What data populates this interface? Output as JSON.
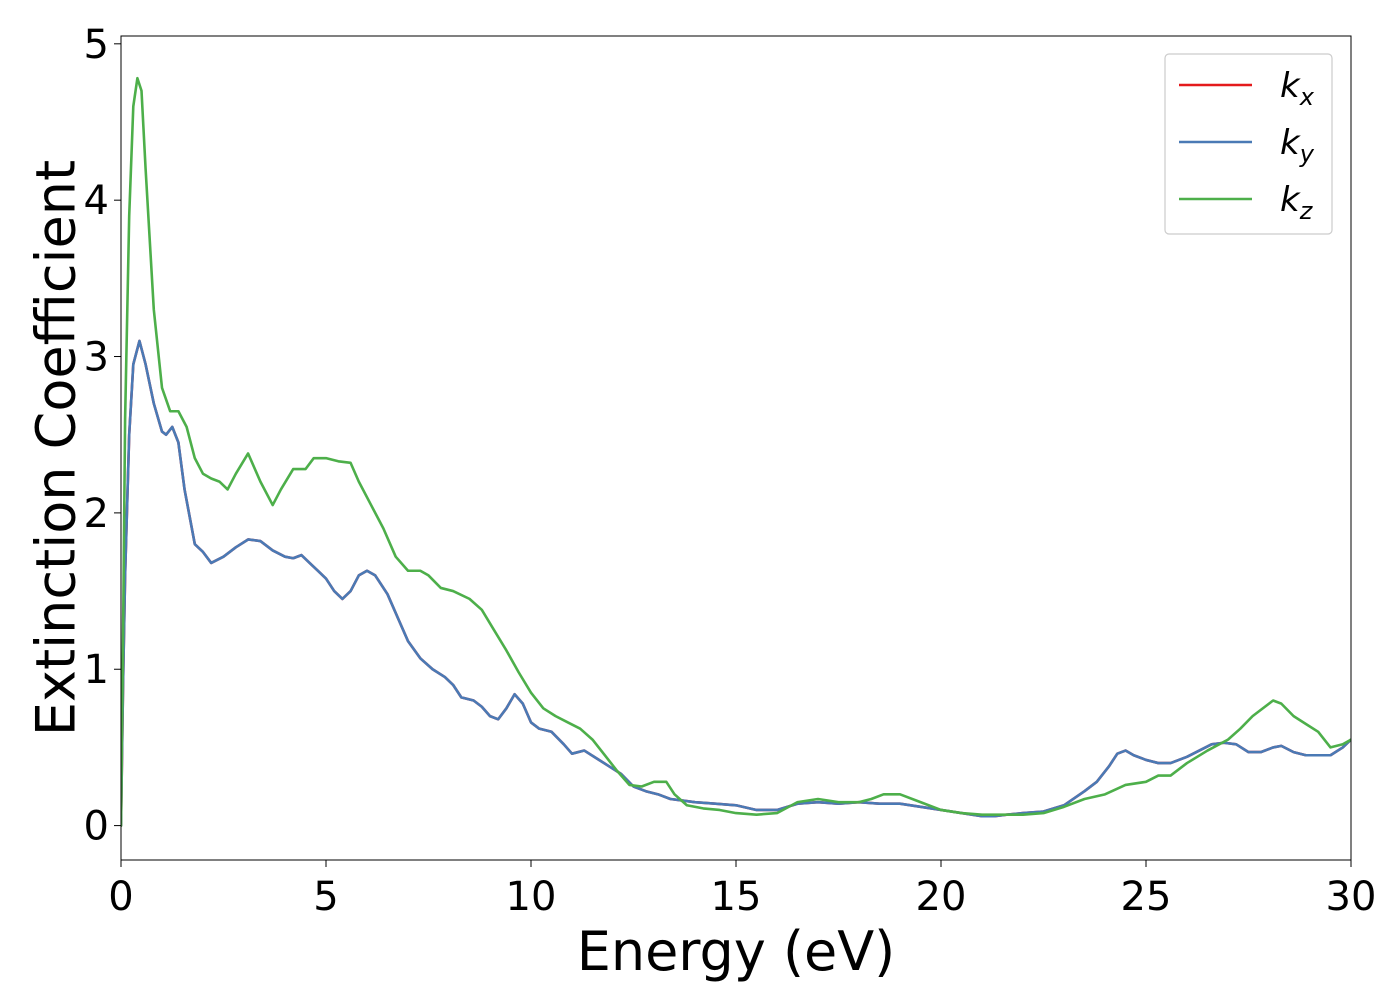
{
  "chart_data": {
    "type": "line",
    "xlabel": "Energy (eV)",
    "ylabel": "Extinction Coefficient",
    "xlim": [
      0,
      30
    ],
    "ylim": [
      -0.22,
      5.05
    ],
    "xticks": [
      0,
      5,
      10,
      15,
      20,
      25,
      30
    ],
    "yticks": [
      0,
      1,
      2,
      3,
      4,
      5
    ],
    "xtick_labels": [
      "0",
      "5",
      "10",
      "15",
      "20",
      "25",
      "30"
    ],
    "ytick_labels": [
      "0",
      "1",
      "2",
      "3",
      "4",
      "5"
    ],
    "grid": false,
    "legend_position": "top-right",
    "series": [
      {
        "name": "k_x",
        "label_main": "k",
        "label_sub": "x",
        "color": "#e41a1c",
        "x": [
          0,
          0.05,
          0.1,
          0.2,
          0.3,
          0.45,
          0.6,
          0.8,
          1.0,
          1.1,
          1.25,
          1.4,
          1.55,
          1.8,
          2.0,
          2.2,
          2.5,
          2.8,
          3.1,
          3.4,
          3.7,
          4.0,
          4.2,
          4.4,
          4.6,
          4.8,
          5.0,
          5.2,
          5.4,
          5.6,
          5.8,
          6.0,
          6.2,
          6.5,
          6.8,
          7.0,
          7.3,
          7.6,
          7.9,
          8.1,
          8.3,
          8.6,
          8.8,
          9.0,
          9.2,
          9.4,
          9.6,
          9.8,
          10.0,
          10.2,
          10.5,
          10.8,
          11.0,
          11.3,
          11.6,
          11.9,
          12.2,
          12.5,
          12.8,
          13.1,
          13.4,
          13.7,
          14.0,
          14.5,
          15.0,
          15.5,
          16.0,
          16.5,
          17.0,
          17.5,
          18.0,
          18.5,
          19.0,
          19.5,
          20.0,
          20.5,
          21.0,
          21.3,
          21.6,
          22.0,
          22.5,
          23.0,
          23.5,
          23.8,
          24.1,
          24.3,
          24.5,
          24.7,
          25.0,
          25.3,
          25.6,
          26.0,
          26.3,
          26.6,
          26.9,
          27.2,
          27.5,
          27.8,
          28.1,
          28.3,
          28.6,
          28.9,
          29.2,
          29.5,
          29.8,
          30.0
        ],
        "y": [
          0,
          0.9,
          1.6,
          2.5,
          2.95,
          3.1,
          2.95,
          2.7,
          2.52,
          2.5,
          2.55,
          2.45,
          2.15,
          1.8,
          1.75,
          1.68,
          1.72,
          1.78,
          1.83,
          1.82,
          1.76,
          1.72,
          1.71,
          1.73,
          1.68,
          1.63,
          1.58,
          1.5,
          1.45,
          1.5,
          1.6,
          1.63,
          1.6,
          1.48,
          1.3,
          1.18,
          1.07,
          1.0,
          0.95,
          0.9,
          0.82,
          0.8,
          0.76,
          0.7,
          0.68,
          0.75,
          0.84,
          0.78,
          0.66,
          0.62,
          0.6,
          0.52,
          0.46,
          0.48,
          0.43,
          0.38,
          0.33,
          0.25,
          0.22,
          0.2,
          0.17,
          0.16,
          0.15,
          0.14,
          0.13,
          0.1,
          0.1,
          0.14,
          0.15,
          0.14,
          0.15,
          0.14,
          0.14,
          0.12,
          0.1,
          0.08,
          0.06,
          0.06,
          0.07,
          0.08,
          0.09,
          0.13,
          0.22,
          0.28,
          0.38,
          0.46,
          0.48,
          0.45,
          0.42,
          0.4,
          0.4,
          0.44,
          0.48,
          0.52,
          0.53,
          0.52,
          0.47,
          0.47,
          0.5,
          0.51,
          0.47,
          0.45,
          0.45,
          0.45,
          0.5,
          0.55
        ]
      },
      {
        "name": "k_y",
        "label_main": "k",
        "label_sub": "y",
        "color": "#4a7ab5",
        "x": [
          0,
          0.05,
          0.1,
          0.2,
          0.3,
          0.45,
          0.6,
          0.8,
          1.0,
          1.1,
          1.25,
          1.4,
          1.55,
          1.8,
          2.0,
          2.2,
          2.5,
          2.8,
          3.1,
          3.4,
          3.7,
          4.0,
          4.2,
          4.4,
          4.6,
          4.8,
          5.0,
          5.2,
          5.4,
          5.6,
          5.8,
          6.0,
          6.2,
          6.5,
          6.8,
          7.0,
          7.3,
          7.6,
          7.9,
          8.1,
          8.3,
          8.6,
          8.8,
          9.0,
          9.2,
          9.4,
          9.6,
          9.8,
          10.0,
          10.2,
          10.5,
          10.8,
          11.0,
          11.3,
          11.6,
          11.9,
          12.2,
          12.5,
          12.8,
          13.1,
          13.4,
          13.7,
          14.0,
          14.5,
          15.0,
          15.5,
          16.0,
          16.5,
          17.0,
          17.5,
          18.0,
          18.5,
          19.0,
          19.5,
          20.0,
          20.5,
          21.0,
          21.3,
          21.6,
          22.0,
          22.5,
          23.0,
          23.5,
          23.8,
          24.1,
          24.3,
          24.5,
          24.7,
          25.0,
          25.3,
          25.6,
          26.0,
          26.3,
          26.6,
          26.9,
          27.2,
          27.5,
          27.8,
          28.1,
          28.3,
          28.6,
          28.9,
          29.2,
          29.5,
          29.8,
          30.0
        ],
        "y": [
          0,
          0.9,
          1.6,
          2.5,
          2.95,
          3.1,
          2.95,
          2.7,
          2.52,
          2.5,
          2.55,
          2.45,
          2.15,
          1.8,
          1.75,
          1.68,
          1.72,
          1.78,
          1.83,
          1.82,
          1.76,
          1.72,
          1.71,
          1.73,
          1.68,
          1.63,
          1.58,
          1.5,
          1.45,
          1.5,
          1.6,
          1.63,
          1.6,
          1.48,
          1.3,
          1.18,
          1.07,
          1.0,
          0.95,
          0.9,
          0.82,
          0.8,
          0.76,
          0.7,
          0.68,
          0.75,
          0.84,
          0.78,
          0.66,
          0.62,
          0.6,
          0.52,
          0.46,
          0.48,
          0.43,
          0.38,
          0.33,
          0.25,
          0.22,
          0.2,
          0.17,
          0.16,
          0.15,
          0.14,
          0.13,
          0.1,
          0.1,
          0.14,
          0.15,
          0.14,
          0.15,
          0.14,
          0.14,
          0.12,
          0.1,
          0.08,
          0.06,
          0.06,
          0.07,
          0.08,
          0.09,
          0.13,
          0.22,
          0.28,
          0.38,
          0.46,
          0.48,
          0.45,
          0.42,
          0.4,
          0.4,
          0.44,
          0.48,
          0.52,
          0.53,
          0.52,
          0.47,
          0.47,
          0.5,
          0.51,
          0.47,
          0.45,
          0.45,
          0.45,
          0.5,
          0.55
        ]
      },
      {
        "name": "k_z",
        "label_main": "k",
        "label_sub": "z",
        "color": "#4daf4a",
        "x": [
          0,
          0.05,
          0.1,
          0.2,
          0.3,
          0.4,
          0.5,
          0.6,
          0.8,
          1.0,
          1.2,
          1.4,
          1.6,
          1.8,
          2.0,
          2.2,
          2.4,
          2.6,
          2.8,
          3.1,
          3.4,
          3.7,
          3.9,
          4.2,
          4.5,
          4.7,
          5.0,
          5.3,
          5.6,
          5.8,
          6.1,
          6.4,
          6.7,
          7.0,
          7.3,
          7.5,
          7.8,
          8.1,
          8.5,
          8.8,
          9.1,
          9.4,
          9.7,
          10.0,
          10.3,
          10.6,
          10.9,
          11.2,
          11.5,
          11.8,
          12.1,
          12.4,
          12.7,
          13.0,
          13.3,
          13.5,
          13.8,
          14.2,
          14.6,
          15.0,
          15.5,
          16.0,
          16.5,
          17.0,
          17.5,
          18.0,
          18.3,
          18.6,
          19.0,
          19.5,
          20.0,
          20.5,
          21.0,
          21.5,
          22.0,
          22.5,
          23.0,
          23.5,
          24.0,
          24.5,
          25.0,
          25.3,
          25.6,
          26.0,
          26.5,
          27.0,
          27.3,
          27.6,
          28.1,
          28.3,
          28.6,
          28.9,
          29.2,
          29.5,
          29.8,
          30.0
        ],
        "y": [
          0,
          1.2,
          2.6,
          3.9,
          4.6,
          4.78,
          4.7,
          4.2,
          3.3,
          2.8,
          2.65,
          2.65,
          2.55,
          2.35,
          2.25,
          2.22,
          2.2,
          2.15,
          2.25,
          2.38,
          2.2,
          2.05,
          2.15,
          2.28,
          2.28,
          2.35,
          2.35,
          2.33,
          2.32,
          2.2,
          2.05,
          1.9,
          1.72,
          1.63,
          1.63,
          1.6,
          1.52,
          1.5,
          1.45,
          1.38,
          1.25,
          1.12,
          0.98,
          0.85,
          0.75,
          0.7,
          0.66,
          0.62,
          0.55,
          0.45,
          0.35,
          0.26,
          0.25,
          0.28,
          0.28,
          0.2,
          0.13,
          0.11,
          0.1,
          0.08,
          0.07,
          0.08,
          0.15,
          0.17,
          0.15,
          0.15,
          0.17,
          0.2,
          0.2,
          0.15,
          0.1,
          0.08,
          0.07,
          0.07,
          0.07,
          0.08,
          0.12,
          0.17,
          0.2,
          0.26,
          0.28,
          0.32,
          0.32,
          0.4,
          0.48,
          0.55,
          0.62,
          0.7,
          0.8,
          0.78,
          0.7,
          0.65,
          0.6,
          0.5,
          0.52,
          0.55
        ]
      }
    ]
  }
}
